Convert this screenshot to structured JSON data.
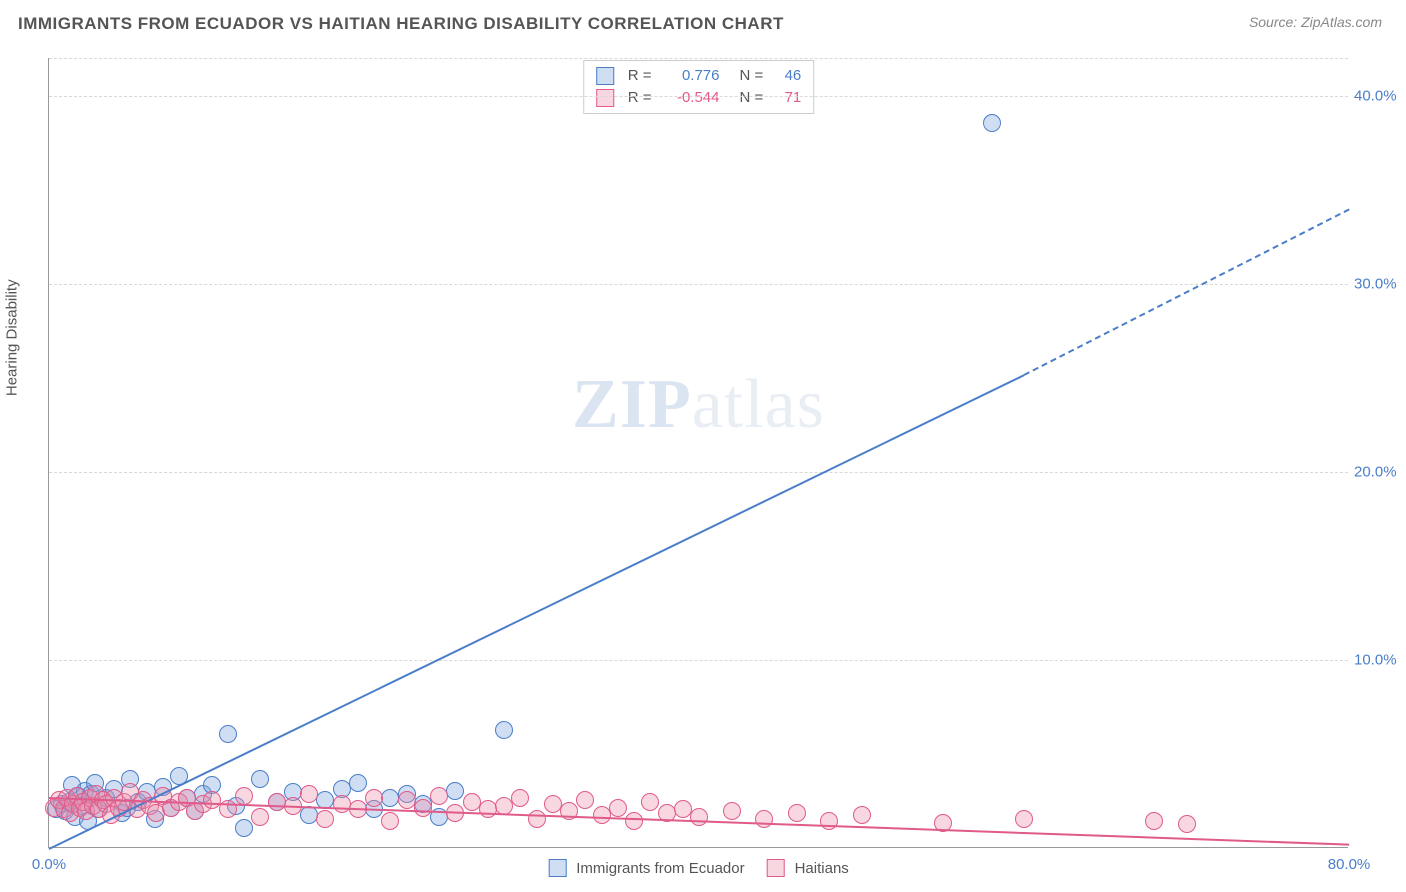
{
  "title": "IMMIGRANTS FROM ECUADOR VS HAITIAN HEARING DISABILITY CORRELATION CHART",
  "source_label": "Source: ZipAtlas.com",
  "ylabel": "Hearing Disability",
  "watermark": {
    "bold": "ZIP",
    "rest": "atlas"
  },
  "chart": {
    "type": "scatter",
    "background_color": "#ffffff",
    "grid_color": "#d8d8d8",
    "axis_color": "#999999",
    "xlim": [
      0,
      80
    ],
    "ylim": [
      0,
      42
    ],
    "xticks": [
      {
        "v": 0,
        "label": "0.0%"
      },
      {
        "v": 80,
        "label": "80.0%"
      }
    ],
    "yticks": [
      {
        "v": 10,
        "label": "10.0%"
      },
      {
        "v": 20,
        "label": "20.0%"
      },
      {
        "v": 30,
        "label": "30.0%"
      },
      {
        "v": 40,
        "label": "40.0%"
      }
    ],
    "marker_radius": 9,
    "marker_stroke_width": 1.5,
    "marker_fill_opacity": 0.35,
    "series": [
      {
        "id": "ecuador",
        "label": "Immigrants from Ecuador",
        "color": "#4a7ec9",
        "fill": "rgba(120,160,220,0.35)",
        "r": 0.776,
        "n": 46,
        "trend": {
          "x1": 0,
          "y1": -1.2,
          "x2_solid": 60,
          "x2_dash": 80,
          "slope": 0.44
        },
        "points": [
          [
            0.4,
            2.0
          ],
          [
            0.8,
            2.3
          ],
          [
            1.0,
            1.9
          ],
          [
            1.2,
            2.4
          ],
          [
            1.4,
            3.3
          ],
          [
            1.6,
            1.6
          ],
          [
            1.8,
            2.7
          ],
          [
            2.0,
            2.2
          ],
          [
            2.2,
            3.0
          ],
          [
            2.4,
            1.4
          ],
          [
            2.6,
            2.8
          ],
          [
            2.8,
            3.4
          ],
          [
            3.0,
            2.0
          ],
          [
            3.5,
            2.6
          ],
          [
            4.0,
            3.1
          ],
          [
            4.5,
            1.8
          ],
          [
            5.0,
            3.6
          ],
          [
            5.5,
            2.4
          ],
          [
            6.0,
            2.9
          ],
          [
            6.5,
            1.5
          ],
          [
            7.0,
            3.2
          ],
          [
            7.5,
            2.1
          ],
          [
            8.0,
            3.8
          ],
          [
            8.5,
            2.6
          ],
          [
            9.0,
            1.9
          ],
          [
            9.5,
            2.8
          ],
          [
            10.0,
            3.3
          ],
          [
            11.0,
            6.0
          ],
          [
            11.5,
            2.2
          ],
          [
            12.0,
            1.0
          ],
          [
            13.0,
            3.6
          ],
          [
            14.0,
            2.4
          ],
          [
            15.0,
            2.9
          ],
          [
            16.0,
            1.7
          ],
          [
            17.0,
            2.5
          ],
          [
            18.0,
            3.1
          ],
          [
            19.0,
            3.4
          ],
          [
            20.0,
            2.0
          ],
          [
            21.0,
            2.6
          ],
          [
            22.0,
            2.8
          ],
          [
            23.0,
            2.3
          ],
          [
            24.0,
            1.6
          ],
          [
            25.0,
            3.0
          ],
          [
            28.0,
            6.2
          ],
          [
            58.0,
            38.5
          ],
          [
            4.8,
            2.1
          ]
        ]
      },
      {
        "id": "haitians",
        "label": "Haitians",
        "color": "#e05a8a",
        "fill": "rgba(235,140,170,0.35)",
        "r": -0.544,
        "n": 71,
        "trend": {
          "x1": 0,
          "y1": 2.7,
          "x2_solid": 80,
          "x2_dash": 80,
          "slope": -0.031
        },
        "points": [
          [
            0.3,
            2.1
          ],
          [
            0.6,
            2.5
          ],
          [
            0.9,
            2.0
          ],
          [
            1.1,
            2.6
          ],
          [
            1.3,
            1.8
          ],
          [
            1.5,
            2.3
          ],
          [
            1.7,
            2.7
          ],
          [
            1.9,
            2.1
          ],
          [
            2.1,
            2.4
          ],
          [
            2.3,
            1.9
          ],
          [
            2.5,
            2.6
          ],
          [
            2.7,
            2.2
          ],
          [
            2.9,
            2.8
          ],
          [
            3.1,
            2.0
          ],
          [
            3.3,
            2.5
          ],
          [
            3.5,
            2.3
          ],
          [
            3.8,
            1.7
          ],
          [
            4.0,
            2.6
          ],
          [
            4.3,
            2.1
          ],
          [
            4.6,
            2.4
          ],
          [
            5.0,
            2.9
          ],
          [
            5.4,
            2.0
          ],
          [
            5.8,
            2.5
          ],
          [
            6.2,
            2.2
          ],
          [
            6.6,
            1.8
          ],
          [
            7.0,
            2.7
          ],
          [
            7.5,
            2.1
          ],
          [
            8.0,
            2.4
          ],
          [
            8.5,
            2.6
          ],
          [
            9.0,
            1.9
          ],
          [
            9.5,
            2.3
          ],
          [
            10.0,
            2.5
          ],
          [
            11.0,
            2.0
          ],
          [
            12.0,
            2.7
          ],
          [
            13.0,
            1.6
          ],
          [
            14.0,
            2.4
          ],
          [
            15.0,
            2.2
          ],
          [
            16.0,
            2.8
          ],
          [
            17.0,
            1.5
          ],
          [
            18.0,
            2.3
          ],
          [
            19.0,
            2.0
          ],
          [
            20.0,
            2.6
          ],
          [
            21.0,
            1.4
          ],
          [
            22.0,
            2.5
          ],
          [
            23.0,
            2.1
          ],
          [
            24.0,
            2.7
          ],
          [
            25.0,
            1.8
          ],
          [
            26.0,
            2.4
          ],
          [
            27.0,
            2.0
          ],
          [
            28.0,
            2.2
          ],
          [
            29.0,
            2.6
          ],
          [
            30.0,
            1.5
          ],
          [
            31.0,
            2.3
          ],
          [
            32.0,
            1.9
          ],
          [
            33.0,
            2.5
          ],
          [
            34.0,
            1.7
          ],
          [
            35.0,
            2.1
          ],
          [
            36.0,
            1.4
          ],
          [
            37.0,
            2.4
          ],
          [
            38.0,
            1.8
          ],
          [
            39.0,
            2.0
          ],
          [
            40.0,
            1.6
          ],
          [
            42.0,
            1.9
          ],
          [
            44.0,
            1.5
          ],
          [
            46.0,
            1.8
          ],
          [
            48.0,
            1.4
          ],
          [
            50.0,
            1.7
          ],
          [
            55.0,
            1.3
          ],
          [
            60.0,
            1.5
          ],
          [
            68.0,
            1.4
          ],
          [
            70.0,
            1.2
          ]
        ]
      }
    ],
    "legend_top": {
      "r_label": "R =",
      "n_label": "N ="
    },
    "legend_bottom_labels": [
      "Immigrants from Ecuador",
      "Haitians"
    ]
  }
}
